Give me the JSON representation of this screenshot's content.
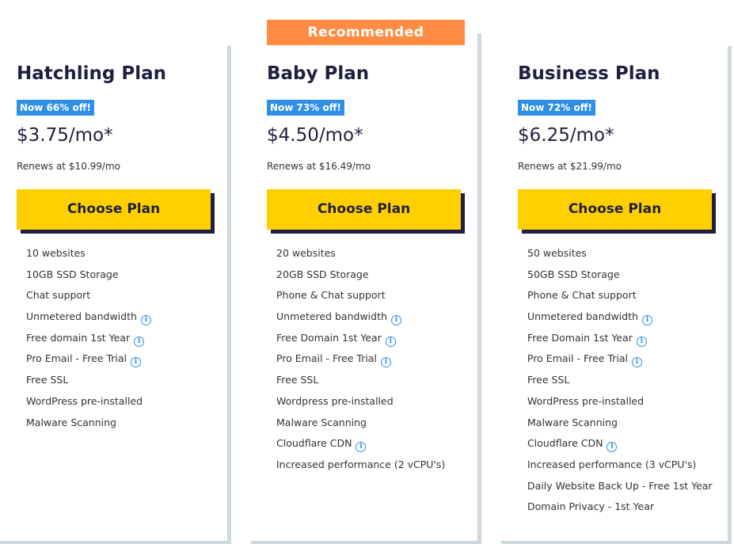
{
  "recommended_label": "Recommended",
  "plans": [
    {
      "title": "Hatchling Plan",
      "badge": "Now 66% off!",
      "price": "$3.75/mo*",
      "renews": "Renews at $10.99/mo",
      "button": "Choose Plan",
      "features": [
        {
          "text": "10 websites"
        },
        {
          "text": "10GB SSD Storage"
        },
        {
          "text": "Chat support"
        },
        {
          "text": "Unmetered bandwidth",
          "info": true
        },
        {
          "text": "Free domain 1st Year",
          "info": true
        },
        {
          "text": "Pro Email - Free Trial",
          "info": true
        },
        {
          "text": "Free SSL"
        },
        {
          "text": "WordPress pre-installed"
        },
        {
          "text": "Malware Scanning"
        }
      ]
    },
    {
      "title": "Baby Plan",
      "badge": "Now 73% off!",
      "price": "$4.50/mo*",
      "renews": "Renews at $16.49/mo",
      "button": "Choose Plan",
      "features": [
        {
          "text": "20 websites"
        },
        {
          "text": "20GB SSD Storage"
        },
        {
          "text": "Phone & Chat support"
        },
        {
          "text": "Unmetered bandwidth",
          "info": true
        },
        {
          "text": "Free Domain 1st Year",
          "info": true
        },
        {
          "text": "Pro Email - Free Trial",
          "info": true
        },
        {
          "text": "Free SSL"
        },
        {
          "text": "Wordpress pre-installed"
        },
        {
          "text": "Malware Scanning"
        },
        {
          "text": "Cloudflare CDN",
          "info": true
        },
        {
          "text": "Increased performance (2 vCPU's)"
        }
      ]
    },
    {
      "title": "Business Plan",
      "badge": "Now 72% off!",
      "price": "$6.25/mo*",
      "renews": "Renews at $21.99/mo",
      "button": "Choose Plan",
      "features": [
        {
          "text": "50 websites"
        },
        {
          "text": "50GB SSD Storage"
        },
        {
          "text": "Phone & Chat support"
        },
        {
          "text": "Unmetered bandwidth",
          "info": true
        },
        {
          "text": "Free Domain 1st Year",
          "info": true
        },
        {
          "text": "Pro Email - Free Trial",
          "info": true
        },
        {
          "text": "Free SSL"
        },
        {
          "text": "WordPress pre-installed"
        },
        {
          "text": "Malware Scanning"
        },
        {
          "text": "Cloudflare CDN",
          "info": true
        },
        {
          "text": "Increased performance (3 vCPU's)"
        },
        {
          "text": "Daily Website Back Up - Free 1st Year"
        },
        {
          "text": "Domain Privacy - 1st Year"
        }
      ]
    }
  ],
  "colors": {
    "badge": "#2f8fe6",
    "button": "#ffcf00",
    "recommended": "#ff8c42",
    "text": "#1f2041"
  }
}
